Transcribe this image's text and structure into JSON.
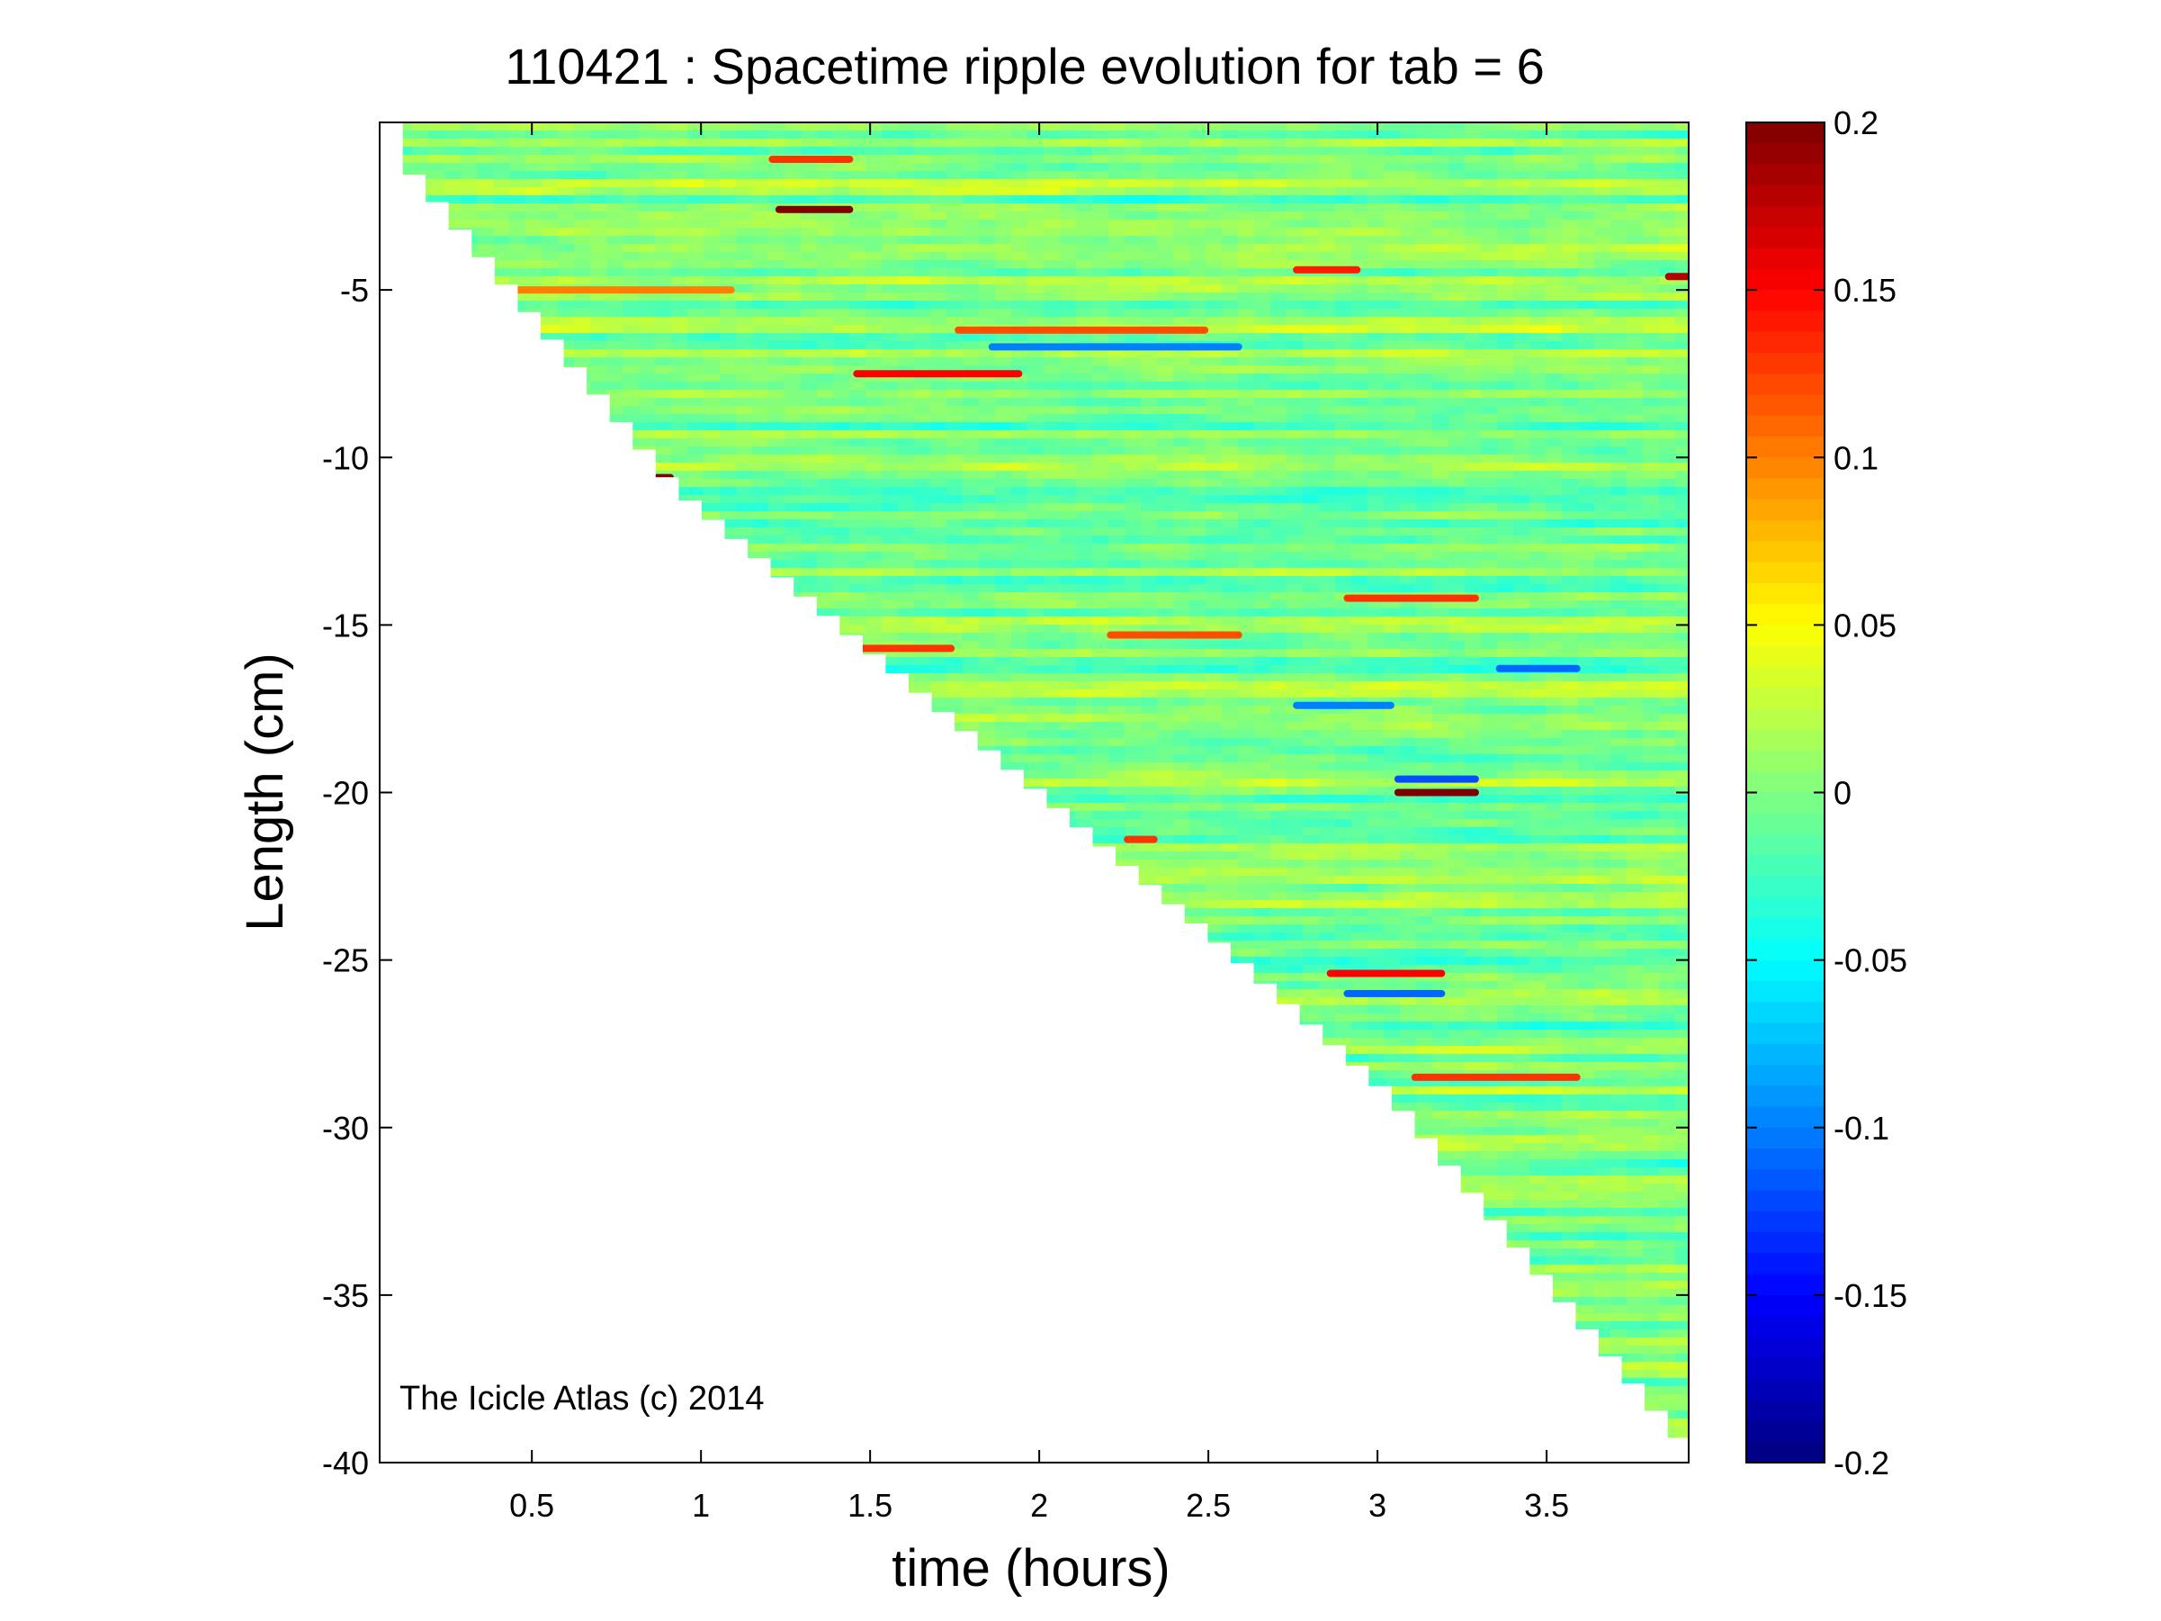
{
  "chart_data": {
    "type": "heatmap",
    "title": "110421 : Spacetime ripple evolution for tab = 6",
    "xlabel": "time (hours)",
    "ylabel": "Length (cm)",
    "xlim": [
      0.05,
      3.92
    ],
    "ylim": [
      -40,
      0
    ],
    "x_ticks": [
      0.5,
      1,
      1.5,
      2,
      2.5,
      3,
      3.5
    ],
    "x_tick_labels": [
      "0.5",
      "1",
      "1.5",
      "2",
      "2.5",
      "3",
      "3.5"
    ],
    "y_ticks": [
      -5,
      -10,
      -15,
      -20,
      -25,
      -30,
      -35,
      -40
    ],
    "y_tick_labels": [
      "-5",
      "-10",
      "-15",
      "-20",
      "-25",
      "-30",
      "-35",
      "-40"
    ],
    "colorbar": {
      "range": [
        -0.2,
        0.2
      ],
      "ticks": [
        0.2,
        0.15,
        0.1,
        0.05,
        0,
        -0.05,
        -0.1,
        -0.15,
        -0.2
      ],
      "tick_labels": [
        "0.2",
        "0.15",
        "0.1",
        "0.05",
        "0",
        "-0.05",
        "-0.1",
        "-0.15",
        "-0.2"
      ],
      "colormap": "jet"
    },
    "growth_front": [
      {
        "t": 0.05,
        "length": 0
      },
      {
        "t": 0.08,
        "length": -1.1
      },
      {
        "t": 0.9,
        "length": -11
      },
      {
        "t": 2.5,
        "length": -24.5
      },
      {
        "t": 3.0,
        "length": -29
      },
      {
        "t": 3.5,
        "length": -35
      },
      {
        "t": 3.92,
        "length": -40
      }
    ],
    "features": [
      {
        "t": [
          1.22,
          1.45
        ],
        "length": -2.6,
        "value": 0.2
      },
      {
        "t": [
          1.2,
          1.45
        ],
        "length": -1.1,
        "value": 0.13
      },
      {
        "t": [
          0.2,
          1.1
        ],
        "length": -5.0,
        "value": 0.1
      },
      {
        "t": [
          1.45,
          1.95
        ],
        "length": -7.5,
        "value": 0.15
      },
      {
        "t": [
          1.75,
          2.5
        ],
        "length": -6.2,
        "value": 0.12
      },
      {
        "t": [
          1.85,
          2.6
        ],
        "length": -6.7,
        "value": -0.1
      },
      {
        "t": [
          2.75,
          2.95
        ],
        "length": -4.4,
        "value": 0.14
      },
      {
        "t": [
          3.85,
          3.95
        ],
        "length": -4.6,
        "value": 0.18
      },
      {
        "t": [
          0.85,
          0.92
        ],
        "length": -10.6,
        "value": 0.2
      },
      {
        "t": [
          1.45,
          1.75
        ],
        "length": -15.7,
        "value": 0.13
      },
      {
        "t": [
          2.2,
          2.6
        ],
        "length": -15.3,
        "value": 0.12
      },
      {
        "t": [
          2.9,
          3.3
        ],
        "length": -14.2,
        "value": 0.13
      },
      {
        "t": [
          3.05,
          3.3
        ],
        "length": -20.0,
        "value": 0.2
      },
      {
        "t": [
          3.05,
          3.3
        ],
        "length": -19.6,
        "value": -0.12
      },
      {
        "t": [
          2.85,
          3.2
        ],
        "length": -25.4,
        "value": 0.15
      },
      {
        "t": [
          2.9,
          3.2
        ],
        "length": -26.0,
        "value": -0.11
      },
      {
        "t": [
          3.1,
          3.6
        ],
        "length": -28.5,
        "value": 0.13
      },
      {
        "t": [
          3.35,
          3.6
        ],
        "length": -16.3,
        "value": -0.11
      },
      {
        "t": [
          2.75,
          3.05
        ],
        "length": -17.4,
        "value": -0.1
      },
      {
        "t": [
          2.25,
          2.35
        ],
        "length": -21.4,
        "value": 0.13
      }
    ],
    "annotation": "The Icicle Atlas (c) 2014",
    "grid": false
  }
}
